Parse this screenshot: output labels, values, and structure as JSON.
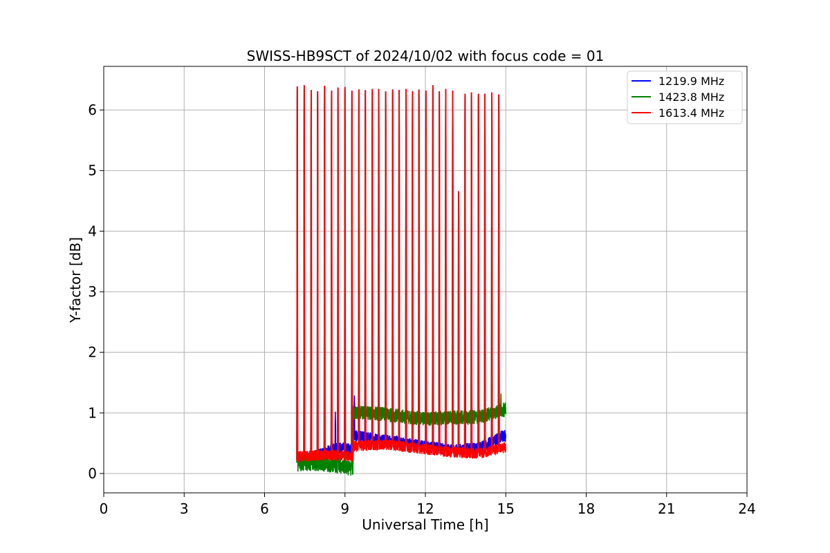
{
  "chart_data": {
    "type": "line",
    "title": "SWISS-HB9SCT of 2024/10/02 with focus code = 01",
    "xlabel": "Universal Time [h]",
    "ylabel": "Y-factor [dB]",
    "xlim": [
      0,
      24
    ],
    "ylim": [
      -0.32,
      6.72
    ],
    "xticks": [
      0,
      3,
      6,
      9,
      12,
      15,
      18,
      21,
      24
    ],
    "yticks": [
      0,
      1,
      2,
      3,
      4,
      5,
      6
    ],
    "grid": true,
    "legend_position": "top-right",
    "time_range": [
      7.2,
      15.0
    ],
    "calibration_peaks": [
      {
        "x": 7.22,
        "y": 6.38
      },
      {
        "x": 7.48,
        "y": 6.4
      },
      {
        "x": 7.74,
        "y": 6.32
      },
      {
        "x": 7.98,
        "y": 6.3
      },
      {
        "x": 8.24,
        "y": 6.39
      },
      {
        "x": 8.5,
        "y": 6.31
      },
      {
        "x": 8.74,
        "y": 6.36
      },
      {
        "x": 9.0,
        "y": 6.37
      },
      {
        "x": 9.26,
        "y": 6.31
      },
      {
        "x": 9.52,
        "y": 6.33
      },
      {
        "x": 9.76,
        "y": 6.32
      },
      {
        "x": 10.02,
        "y": 6.34
      },
      {
        "x": 10.26,
        "y": 6.34
      },
      {
        "x": 10.52,
        "y": 6.3
      },
      {
        "x": 10.78,
        "y": 6.33
      },
      {
        "x": 11.02,
        "y": 6.32
      },
      {
        "x": 11.28,
        "y": 6.34
      },
      {
        "x": 11.52,
        "y": 6.3
      },
      {
        "x": 11.76,
        "y": 6.33
      },
      {
        "x": 12.02,
        "y": 6.31
      },
      {
        "x": 12.28,
        "y": 6.4
      },
      {
        "x": 12.52,
        "y": 6.3
      },
      {
        "x": 12.76,
        "y": 6.34
      },
      {
        "x": 13.02,
        "y": 6.31
      },
      {
        "x": 13.24,
        "y": 4.65
      },
      {
        "x": 13.48,
        "y": 6.26
      },
      {
        "x": 13.72,
        "y": 6.28
      },
      {
        "x": 13.98,
        "y": 6.26
      },
      {
        "x": 14.22,
        "y": 6.26
      },
      {
        "x": 14.48,
        "y": 6.28
      },
      {
        "x": 14.74,
        "y": 6.25
      }
    ],
    "series": [
      {
        "name": "1219.9 MHz",
        "color": "#0000ff",
        "baseline": [
          {
            "x": 7.2,
            "y": 0.22
          },
          {
            "x": 8.0,
            "y": 0.3
          },
          {
            "x": 8.7,
            "y": 0.42
          },
          {
            "x": 9.3,
            "y": 0.4
          },
          {
            "x": 9.32,
            "y": 0.62
          },
          {
            "x": 10.5,
            "y": 0.55
          },
          {
            "x": 12.0,
            "y": 0.45
          },
          {
            "x": 13.0,
            "y": 0.38
          },
          {
            "x": 14.0,
            "y": 0.42
          },
          {
            "x": 14.9,
            "y": 0.62
          }
        ],
        "noise": 0.1,
        "spikes": [
          {
            "x": 8.64,
            "y": 1.02
          },
          {
            "x": 9.35,
            "y": 1.32
          }
        ]
      },
      {
        "name": "1423.8 MHz",
        "color": "#008000",
        "baseline": [
          {
            "x": 7.2,
            "y": 0.15
          },
          {
            "x": 8.0,
            "y": 0.16
          },
          {
            "x": 9.0,
            "y": 0.1
          },
          {
            "x": 9.3,
            "y": 0.07
          },
          {
            "x": 9.32,
            "y": 1.0
          },
          {
            "x": 10.0,
            "y": 1.0
          },
          {
            "x": 11.0,
            "y": 0.95
          },
          {
            "x": 12.0,
            "y": 0.9
          },
          {
            "x": 13.0,
            "y": 0.92
          },
          {
            "x": 14.0,
            "y": 0.93
          },
          {
            "x": 14.9,
            "y": 1.05
          }
        ],
        "noise": 0.12,
        "spikes": [
          {
            "x": 14.82,
            "y": 1.32
          }
        ]
      },
      {
        "name": "1613.4 MHz",
        "color": "#ff0000",
        "baseline": [
          {
            "x": 7.2,
            "y": 0.28
          },
          {
            "x": 8.0,
            "y": 0.3
          },
          {
            "x": 9.0,
            "y": 0.3
          },
          {
            "x": 9.3,
            "y": 0.28
          },
          {
            "x": 9.32,
            "y": 0.45
          },
          {
            "x": 10.5,
            "y": 0.48
          },
          {
            "x": 12.0,
            "y": 0.4
          },
          {
            "x": 13.0,
            "y": 0.35
          },
          {
            "x": 14.0,
            "y": 0.33
          },
          {
            "x": 14.9,
            "y": 0.42
          }
        ],
        "noise": 0.09,
        "spikes": []
      }
    ]
  }
}
